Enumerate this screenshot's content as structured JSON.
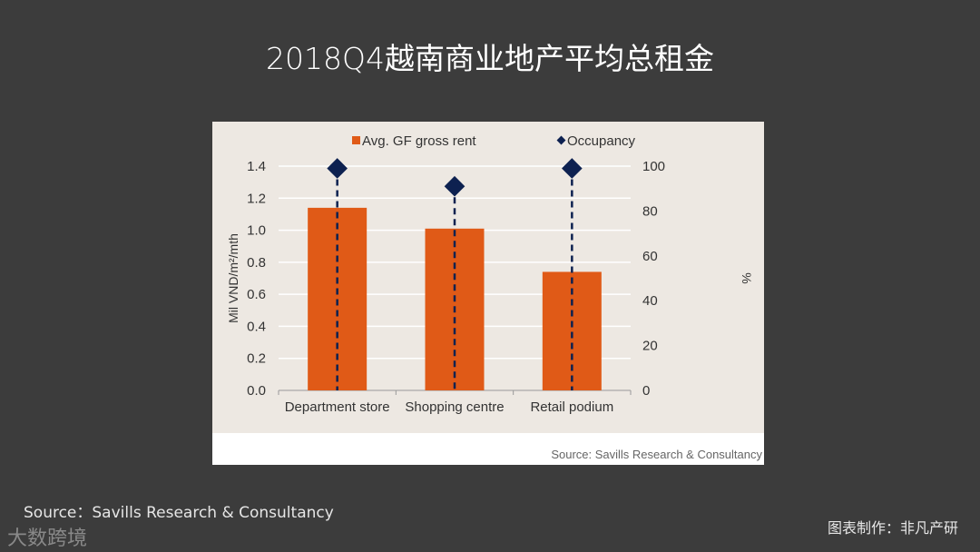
{
  "title": "2018Q4越南商业地产平均总租金",
  "footer": {
    "source": "Source：Savills Research & Consultancy",
    "credit": "图表制作：非凡产研",
    "watermark": "大数跨境"
  },
  "chart_data": {
    "type": "bar",
    "categories": [
      "Department store",
      "Shopping centre",
      "Retail podium"
    ],
    "series": [
      {
        "name": "Avg. GF gross rent",
        "type": "bar",
        "axis": "left",
        "values": [
          1.14,
          1.01,
          0.74
        ],
        "color": "#e05a17"
      },
      {
        "name": "Occupancy",
        "type": "scatter-diamond",
        "axis": "right",
        "values": [
          99,
          91,
          99
        ],
        "color": "#0d2150"
      }
    ],
    "ylabel": "Mil VND/m²/mth",
    "ylabel_right": "%",
    "ylim": [
      0,
      1.4
    ],
    "ylim_right": [
      0,
      100
    ],
    "yticks": [
      "0.0",
      "0.2",
      "0.4",
      "0.6",
      "0.8",
      "1.0",
      "1.2",
      "1.4"
    ],
    "yticks_right": [
      "0",
      "20",
      "40",
      "60",
      "80",
      "100"
    ],
    "grid": true,
    "legend": "top",
    "source": "Source: Savills Research & Consultancy"
  }
}
